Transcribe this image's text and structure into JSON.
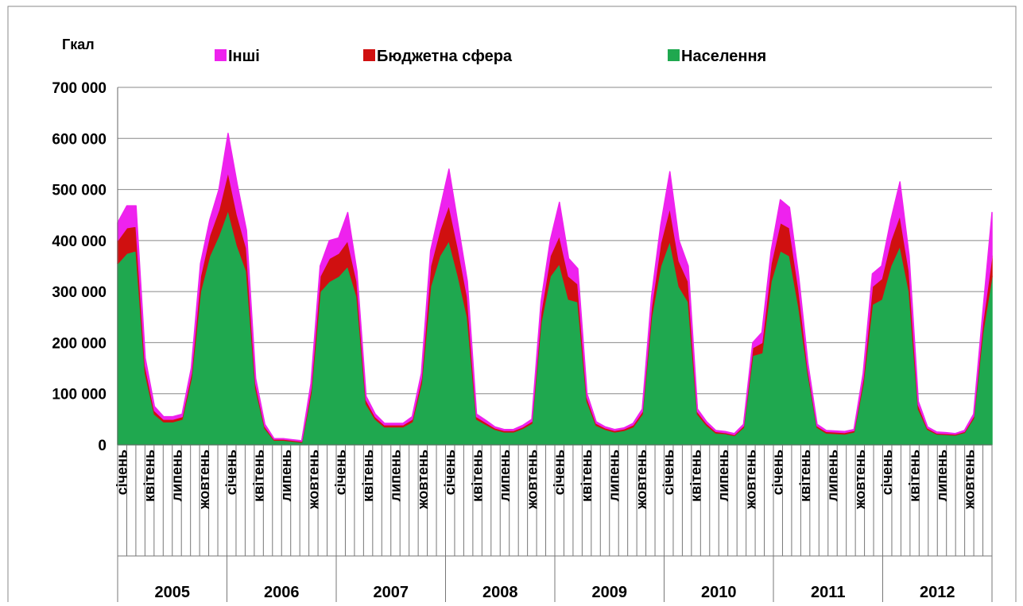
{
  "chart_data": {
    "type": "stacked_area",
    "y_label": "Гкал",
    "categories": [
      "січень",
      null,
      null,
      "квітень",
      null,
      null,
      "липень",
      null,
      null,
      "жовтень",
      null,
      null,
      "січень",
      null,
      null,
      "квітень",
      null,
      null,
      "липень",
      null,
      null,
      "жовтень",
      null,
      null,
      "січень",
      null,
      null,
      "квітень",
      null,
      null,
      "липень",
      null,
      null,
      "жовтень",
      null,
      null,
      "січень",
      null,
      null,
      "квітень",
      null,
      null,
      "липень",
      null,
      null,
      "жовтень",
      null,
      null,
      "січень",
      null,
      null,
      "квітень",
      null,
      null,
      "липень",
      null,
      null,
      "жовтень",
      null,
      null,
      "січень",
      null,
      null,
      "квітень",
      null,
      null,
      "липень",
      null,
      null,
      "жовтень",
      null,
      null,
      "січень",
      null,
      null,
      "квітень",
      null,
      null,
      "липень",
      null,
      null,
      "жовтень",
      null,
      null,
      "січень",
      null,
      null,
      "квітень",
      null,
      null,
      "липень",
      null,
      null,
      "жовтень",
      null,
      null
    ],
    "years": [
      "2005",
      "2006",
      "2007",
      "2008",
      "2009",
      "2010",
      "2011",
      "2012"
    ],
    "series": [
      {
        "name": "Населення",
        "color": "#1fa84f",
        "values": [
          355000,
          375000,
          380000,
          140000,
          60000,
          45000,
          45000,
          50000,
          130000,
          300000,
          370000,
          410000,
          460000,
          390000,
          340000,
          110000,
          32000,
          9000,
          9000,
          7000,
          5000,
          100000,
          300000,
          320000,
          330000,
          350000,
          290000,
          80000,
          50000,
          35000,
          35000,
          35000,
          45000,
          120000,
          310000,
          370000,
          400000,
          330000,
          250000,
          50000,
          40000,
          30000,
          25000,
          25000,
          32000,
          42000,
          240000,
          330000,
          355000,
          285000,
          280000,
          85000,
          38000,
          30000,
          25000,
          28000,
          35000,
          60000,
          250000,
          350000,
          400000,
          310000,
          280000,
          60000,
          38000,
          23000,
          22000,
          18000,
          34000,
          175000,
          180000,
          320000,
          380000,
          370000,
          270000,
          140000,
          34000,
          23000,
          22000,
          21000,
          25000,
          120000,
          275000,
          285000,
          350000,
          390000,
          300000,
          70000,
          30000,
          21000,
          20000,
          19000,
          24000,
          52000,
          220000,
          330000
        ]
      },
      {
        "name": "Бюджетна сфера",
        "color": "#d01010",
        "values": [
          45000,
          50000,
          48000,
          15000,
          7000,
          5000,
          5000,
          5000,
          10000,
          30000,
          40000,
          50000,
          75000,
          60000,
          45000,
          10000,
          4000,
          2000,
          2000,
          2000,
          2000,
          10000,
          30000,
          45000,
          45000,
          50000,
          30000,
          8000,
          5000,
          4000,
          4000,
          4000,
          5000,
          10000,
          40000,
          50000,
          70000,
          55000,
          40000,
          5000,
          4000,
          3000,
          3000,
          3000,
          3000,
          4000,
          20000,
          40000,
          55000,
          45000,
          35000,
          8000,
          4000,
          3000,
          3000,
          3000,
          4000,
          5000,
          20000,
          45000,
          65000,
          50000,
          40000,
          5000,
          4000,
          3000,
          2000,
          2000,
          3000,
          15000,
          20000,
          35000,
          55000,
          55000,
          35000,
          10000,
          3000,
          3000,
          3000,
          3000,
          3000,
          10000,
          35000,
          40000,
          50000,
          60000,
          40000,
          8000,
          3000,
          2000,
          2000,
          2000,
          2000,
          4000,
          20000,
          40000
        ]
      },
      {
        "name": "Інші",
        "color": "#ee22ee",
        "values": [
          35000,
          43000,
          40000,
          15000,
          8000,
          5000,
          5000,
          5000,
          10000,
          25000,
          30000,
          40000,
          75000,
          60000,
          35000,
          10000,
          4000,
          1000,
          1000,
          1000,
          1000,
          10000,
          20000,
          35000,
          30000,
          55000,
          20000,
          7000,
          5000,
          3000,
          3000,
          3000,
          5000,
          10000,
          30000,
          40000,
          70000,
          45000,
          30000,
          5000,
          4000,
          2000,
          2000,
          2000,
          3000,
          4000,
          20000,
          30000,
          65000,
          35000,
          30000,
          7000,
          3000,
          2000,
          2000,
          2000,
          3000,
          5000,
          20000,
          35000,
          70000,
          40000,
          30000,
          5000,
          3000,
          2000,
          2000,
          2000,
          3000,
          10000,
          20000,
          25000,
          45000,
          40000,
          25000,
          10000,
          3000,
          2000,
          2000,
          2000,
          2000,
          10000,
          25000,
          25000,
          40000,
          65000,
          30000,
          7000,
          2000,
          2000,
          2000,
          1000,
          2000,
          4000,
          20000,
          85000
        ]
      }
    ],
    "ylim": [
      0,
      700000
    ],
    "yticks": [
      0,
      {
        "value": 100000,
        "label": "100 000"
      },
      {
        "value": 200000,
        "label": "200 000"
      },
      {
        "value": 300000,
        "label": "300 000"
      },
      {
        "value": 400000,
        "label": "400 000"
      },
      {
        "value": 500000,
        "label": "500 000"
      },
      {
        "value": 600000,
        "label": "600 000"
      },
      {
        "value": 700000,
        "label": "700 000"
      }
    ],
    "grid": true
  }
}
